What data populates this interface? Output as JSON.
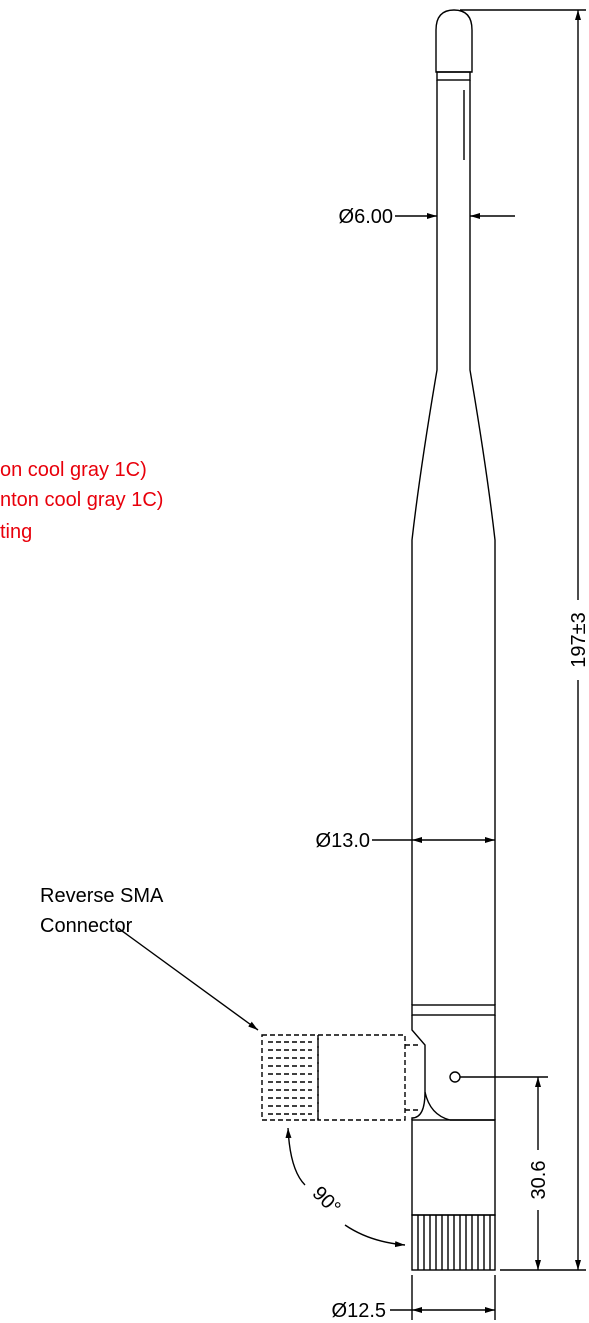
{
  "dimensions": {
    "tip_diameter": "Ø6.00",
    "body_diameter": "Ø13.0",
    "total_length": "197±3",
    "connector_height": "30.6",
    "rotation_angle": "90°",
    "base_diameter": "Ø12.5"
  },
  "callout": {
    "lines": [
      "Reverse SMA",
      "Connector"
    ]
  },
  "notes": [
    "on cool gray 1C)",
    "nton cool gray 1C)",
    "ting"
  ]
}
